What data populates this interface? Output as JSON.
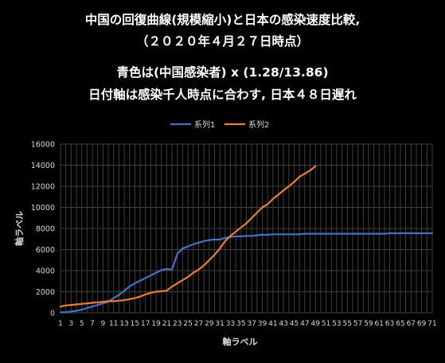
{
  "chart_data": {
    "type": "line",
    "title_lines": [
      "中国の回復曲線(規模縮小)と日本の感染速度比較,",
      "（２０２０年４月２７日時点）",
      "青色は(中国感染者) x (1.28/13.86)",
      "日付軸は感染千人時点に合わす, 日本４８日遅れ"
    ],
    "xlabel": "軸ラベル",
    "ylabel": "軸ラベル",
    "ylim": [
      0,
      16000
    ],
    "y_ticks": [
      "0",
      "2000",
      "4000",
      "6000",
      "8000",
      "10000",
      "12000",
      "14000",
      "16000"
    ],
    "x_range": [
      1,
      71
    ],
    "x_tick_labels": [
      "1",
      "3",
      "5",
      "7",
      "9",
      "11",
      "13",
      "15",
      "17",
      "19",
      "21",
      "23",
      "25",
      "27",
      "29",
      "31",
      "33",
      "35",
      "37",
      "39",
      "41",
      "43",
      "45",
      "47",
      "49",
      "51",
      "53",
      "55",
      "57",
      "59",
      "61",
      "63",
      "65",
      "67",
      "69",
      "71"
    ],
    "grid": true,
    "legend_position": "top",
    "series": [
      {
        "name": "系列1",
        "color": "#4472c4",
        "x": [
          1,
          2,
          3,
          4,
          5,
          6,
          7,
          8,
          9,
          10,
          11,
          12,
          13,
          14,
          15,
          16,
          17,
          18,
          19,
          20,
          21,
          22,
          23,
          24,
          25,
          26,
          27,
          28,
          29,
          30,
          31,
          32,
          33,
          34,
          35,
          36,
          37,
          38,
          39,
          40,
          41,
          42,
          43,
          44,
          45,
          46,
          47,
          48,
          49,
          50,
          51,
          52,
          53,
          54,
          55,
          56,
          57,
          58,
          59,
          60,
          61,
          62,
          63,
          64,
          65,
          66,
          67,
          68,
          69,
          70,
          71
        ],
        "y": [
          50,
          70,
          120,
          200,
          300,
          450,
          600,
          750,
          900,
          1050,
          1400,
          1700,
          2100,
          2500,
          2800,
          3050,
          3300,
          3550,
          3800,
          4050,
          4150,
          4100,
          5600,
          6100,
          6300,
          6500,
          6650,
          6800,
          6900,
          6950,
          6950,
          7100,
          7200,
          7250,
          7250,
          7300,
          7300,
          7350,
          7400,
          7400,
          7450,
          7450,
          7450,
          7450,
          7450,
          7450,
          7500,
          7500,
          7500,
          7500,
          7500,
          7500,
          7500,
          7500,
          7500,
          7500,
          7500,
          7500,
          7500,
          7500,
          7500,
          7500,
          7550,
          7550,
          7550,
          7550,
          7550,
          7550,
          7550,
          7550,
          7550
        ]
      },
      {
        "name": "系列2",
        "color": "#ed7d31",
        "x": [
          1,
          2,
          3,
          4,
          5,
          6,
          7,
          8,
          9,
          10,
          11,
          12,
          13,
          14,
          15,
          16,
          17,
          18,
          19,
          20,
          21,
          22,
          23,
          24,
          25,
          26,
          27,
          28,
          29,
          30,
          31,
          32,
          33,
          34,
          35,
          36,
          37,
          38,
          39,
          40,
          41,
          42,
          43,
          44,
          45,
          46,
          47,
          48,
          49
        ],
        "y": [
          600,
          700,
          750,
          800,
          850,
          900,
          950,
          1000,
          1050,
          1100,
          1100,
          1150,
          1200,
          1300,
          1400,
          1550,
          1750,
          1900,
          2000,
          2050,
          2100,
          2500,
          2800,
          3100,
          3400,
          3800,
          4100,
          4500,
          5000,
          5500,
          6100,
          6800,
          7300,
          7700,
          8100,
          8500,
          9000,
          9500,
          10000,
          10300,
          10800,
          11200,
          11600,
          12000,
          12400,
          12900,
          13200,
          13500,
          13900
        ]
      }
    ]
  }
}
